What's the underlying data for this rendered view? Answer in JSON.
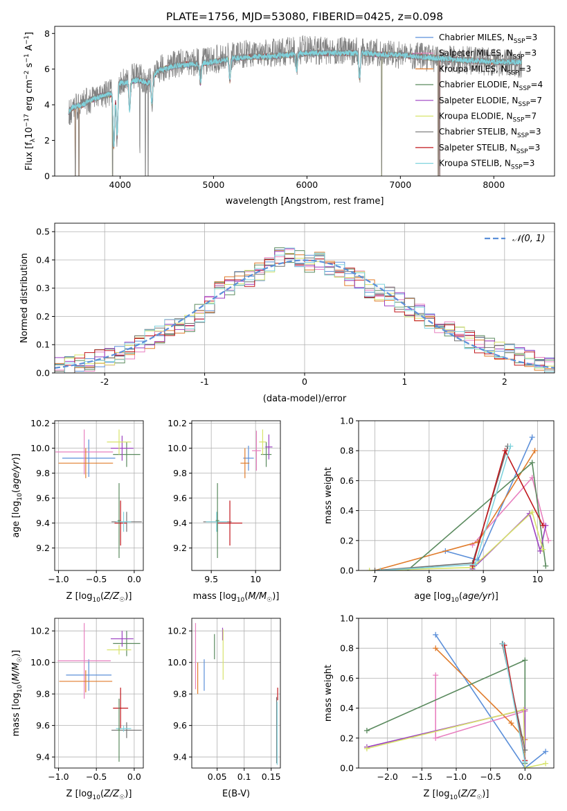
{
  "figure": {
    "title": "PLATE=1756, MJD=53080, FIBERID=0425, z=0.098"
  },
  "colors": {
    "Chabrier MILES": "#5b8fd9",
    "Salpeter MILES": "#e87fbf",
    "Kroupa MILES": "#e07b2a",
    "Chabrier ELODIE": "#5a8a5e",
    "Salpeter ELODIE": "#9b3fc0",
    "Kroupa ELODIE": "#d7e36a",
    "Chabrier STELIB": "#707070",
    "Salpeter STELIB": "#c0161b",
    "Kroupa STELIB": "#7fd3dd"
  },
  "chart_data": [
    {
      "id": "spectrum",
      "type": "line",
      "xlabel": "wavelength [Angstrom, rest frame]",
      "ylabel": "Flux [f_λ 10^-17 erg cm^-2 s^-1 A^-1]",
      "xlim": [
        3300,
        8650
      ],
      "ylim": [
        0,
        8.4
      ],
      "xticks": [
        4000,
        5000,
        6000,
        7000,
        8000
      ],
      "yticks": [
        0,
        2,
        4,
        6,
        8
      ],
      "grid": false,
      "legend": "top-right",
      "legend_entries": [
        "Chabrier MILES, N_SSP=3",
        "Salpeter MILES, N_SSP=3",
        "Kroupa MILES, N_SSP=3",
        "Chabrier ELODIE, N_SSP=4",
        "Salpeter ELODIE, N_SSP=7",
        "Kroupa ELODIE, N_SSP=7",
        "Chabrier STELIB, N_SSP=3",
        "Salpeter STELIB, N_SSP=3",
        "Kroupa STELIB, N_SSP=3"
      ],
      "data_continuum": {
        "x": [
          3450,
          3600,
          3700,
          3800,
          3900,
          4000,
          4100,
          4200,
          4300,
          4400,
          4600,
          4800,
          5000,
          5200,
          5400,
          5600,
          5800,
          6000,
          6200,
          6400,
          6600,
          6800,
          7000,
          7200,
          7400,
          7700,
          8000,
          8300
        ],
        "y": [
          3.6,
          4.1,
          4.3,
          4.5,
          4.7,
          5.3,
          5.5,
          5.6,
          5.3,
          6.0,
          6.3,
          6.4,
          6.5,
          6.8,
          6.9,
          6.9,
          7.0,
          7.1,
          7.0,
          7.0,
          7.0,
          6.9,
          6.8,
          6.7,
          6.6,
          6.5,
          6.4,
          6.3
        ]
      },
      "model_continuum": {
        "x": [
          3450,
          3500,
          3600,
          3700,
          3800,
          3900,
          4000,
          4100,
          4200,
          4300,
          4400,
          4600,
          4800,
          5000,
          5200,
          5400,
          5600,
          5800,
          6000,
          6200,
          6400,
          6600,
          6800,
          7000,
          7200,
          7400,
          7700,
          8000,
          8300
        ],
        "y": [
          3.6,
          3.9,
          4.0,
          4.3,
          4.5,
          4.6,
          5.2,
          5.3,
          5.4,
          5.2,
          5.9,
          6.2,
          6.3,
          6.4,
          6.6,
          6.7,
          6.7,
          6.8,
          6.9,
          6.9,
          6.9,
          6.9,
          6.8,
          6.8,
          6.7,
          6.6,
          6.5,
          6.4,
          6.4
        ]
      }
    },
    {
      "id": "residuals",
      "type": "line",
      "xlabel": "(data-model)/error",
      "ylabel": "Normed distribution",
      "xlim": [
        -2.5,
        2.5
      ],
      "ylim": [
        0,
        0.53
      ],
      "xticks": [
        -2,
        -1,
        0,
        1,
        2
      ],
      "yticks": [
        0.0,
        0.1,
        0.2,
        0.3,
        0.4,
        0.5
      ],
      "grid": true,
      "legend": "top-right",
      "legend_entries": [
        "𝒩(0, 1)"
      ],
      "bin_width": 0.1,
      "hist_x": [
        -2.45,
        -2.35,
        -2.25,
        -2.15,
        -2.05,
        -1.95,
        -1.85,
        -1.75,
        -1.65,
        -1.55,
        -1.45,
        -1.35,
        -1.25,
        -1.15,
        -1.05,
        -0.95,
        -0.85,
        -0.75,
        -0.65,
        -0.55,
        -0.45,
        -0.35,
        -0.25,
        -0.15,
        -0.05,
        0.05,
        0.15,
        0.25,
        0.35,
        0.45,
        0.55,
        0.65,
        0.75,
        0.85,
        0.95,
        1.05,
        1.15,
        1.25,
        1.35,
        1.45,
        1.55,
        1.65,
        1.75,
        1.85,
        1.95,
        2.05,
        2.15,
        2.25,
        2.35,
        2.45
      ],
      "hist_y": [
        0.02,
        0.025,
        0.03,
        0.04,
        0.05,
        0.06,
        0.07,
        0.08,
        0.1,
        0.12,
        0.14,
        0.16,
        0.17,
        0.18,
        0.21,
        0.24,
        0.29,
        0.31,
        0.33,
        0.34,
        0.36,
        0.38,
        0.41,
        0.42,
        0.4,
        0.39,
        0.4,
        0.37,
        0.36,
        0.34,
        0.33,
        0.3,
        0.28,
        0.27,
        0.25,
        0.23,
        0.21,
        0.19,
        0.17,
        0.15,
        0.13,
        0.12,
        0.1,
        0.09,
        0.08,
        0.07,
        0.06,
        0.05,
        0.04,
        0.03
      ],
      "normal_curve": {
        "mean": 0,
        "sigma": 1
      }
    },
    {
      "id": "z-age",
      "type": "scatter",
      "xlabel": "Z [log10(Z/Z☉)]",
      "ylabel": "age  [log10(age/yr)]",
      "xlim": [
        -1.05,
        0.12
      ],
      "ylim": [
        9.02,
        10.22
      ],
      "xticks": [
        -1.0,
        -0.5,
        0.0
      ],
      "xticklabels": [
        "−1.0",
        "−0.5",
        "0.0"
      ],
      "yticks": [
        9.2,
        9.4,
        9.6,
        9.8,
        10.0,
        10.2
      ],
      "grid": true,
      "errorbars": [
        {
          "model": "Chabrier MILES",
          "x": -0.6,
          "y": 9.92,
          "xerr": 0.35,
          "yerr": 0.15
        },
        {
          "model": "Salpeter MILES",
          "x": -0.66,
          "y": 9.97,
          "xerr": 0.38,
          "yerr": 0.18
        },
        {
          "model": "Kroupa MILES",
          "x": -0.64,
          "y": 9.88,
          "xerr": 0.36,
          "yerr": 0.12
        },
        {
          "model": "Chabrier ELODIE",
          "x": -0.1,
          "y": 9.95,
          "xerr": 0.18,
          "yerr": 0.1
        },
        {
          "model": "Salpeter ELODIE",
          "x": -0.16,
          "y": 10.0,
          "xerr": 0.15,
          "yerr": 0.1
        },
        {
          "model": "Kroupa ELODIE",
          "x": -0.2,
          "y": 10.05,
          "xerr": 0.16,
          "yerr": 0.1
        },
        {
          "model": "Chabrier STELIB",
          "x": -0.1,
          "y": 9.41,
          "xerr": 0.2,
          "yerr": 0.08
        },
        {
          "model": "Salpeter STELIB",
          "x": -0.18,
          "y": 9.4,
          "xerr": 0.08,
          "yerr": 0.18
        },
        {
          "model": "Kroupa STELIB",
          "x": -0.14,
          "y": 9.41,
          "xerr": 0.1,
          "yerr": 0.08
        },
        {
          "model": "Chabrier ELODIE",
          "x": -0.2,
          "y": 9.42,
          "xerr": 0.02,
          "yerr": 0.3
        }
      ]
    },
    {
      "id": "mass-age",
      "type": "scatter",
      "xlabel": "mass [log10(M/M☉)]",
      "xlim": [
        9.28,
        10.28
      ],
      "ylim": [
        9.02,
        10.22
      ],
      "xticks": [
        9.5,
        10.0
      ],
      "yticks": [
        9.2,
        9.4,
        9.6,
        9.8,
        10.0,
        10.2
      ],
      "grid": true,
      "errorbars": [
        {
          "model": "Chabrier MILES",
          "x": 9.92,
          "y": 9.92,
          "xerr": 0.06,
          "yerr": 0.1
        },
        {
          "model": "Salpeter MILES",
          "x": 10.01,
          "y": 9.98,
          "xerr": 0.05,
          "yerr": 0.16
        },
        {
          "model": "Kroupa MILES",
          "x": 9.88,
          "y": 9.88,
          "xerr": 0.05,
          "yerr": 0.12
        },
        {
          "model": "Chabrier ELODIE",
          "x": 10.12,
          "y": 9.95,
          "xerr": 0.06,
          "yerr": 0.1
        },
        {
          "model": "Salpeter ELODIE",
          "x": 10.15,
          "y": 10.01,
          "xerr": 0.04,
          "yerr": 0.1
        },
        {
          "model": "Kroupa ELODIE",
          "x": 10.08,
          "y": 10.05,
          "xerr": 0.04,
          "yerr": 0.1
        },
        {
          "model": "Chabrier STELIB",
          "x": 9.57,
          "y": 9.41,
          "xerr": 0.16,
          "yerr": 0.08
        },
        {
          "model": "Salpeter STELIB",
          "x": 9.71,
          "y": 9.4,
          "xerr": 0.14,
          "yerr": 0.18
        },
        {
          "model": "Kroupa STELIB",
          "x": 9.56,
          "y": 9.41,
          "xerr": 0.12,
          "yerr": 0.08
        },
        {
          "model": "Chabrier ELODIE",
          "x": 9.57,
          "y": 9.42,
          "xerr": 0.02,
          "yerr": 0.3
        }
      ]
    },
    {
      "id": "age-weight",
      "type": "line",
      "xlabel": "age  [log10(age/yr)]",
      "ylabel": "mass weight",
      "xlim": [
        6.7,
        10.3
      ],
      "ylim": [
        0,
        1.0
      ],
      "xticks": [
        7,
        8,
        9,
        10
      ],
      "yticks": [
        0.0,
        0.2,
        0.4,
        0.6,
        0.8,
        1.0
      ],
      "grid": true,
      "series": [
        {
          "model": "Chabrier MILES",
          "x": [
            8.3,
            8.9,
            9.9
          ],
          "y": [
            0.13,
            0.07,
            0.89
          ]
        },
        {
          "model": "Salpeter MILES",
          "x": [
            8.8,
            9.9,
            10.2
          ],
          "y": [
            0.17,
            0.62,
            0.2
          ]
        },
        {
          "model": "Kroupa MILES",
          "x": [
            7.0,
            8.9,
            9.95
          ],
          "y": [
            0.0,
            0.19,
            0.8
          ]
        },
        {
          "model": "Chabrier ELODIE",
          "x": [
            7.6,
            9.9,
            10.15
          ],
          "y": [
            0.0,
            0.72,
            0.03
          ]
        },
        {
          "model": "Salpeter ELODIE",
          "x": [
            8.8,
            9.85,
            10.05,
            10.15
          ],
          "y": [
            0.01,
            0.38,
            0.13,
            0.3
          ]
        },
        {
          "model": "Kroupa ELODIE",
          "x": [
            6.9,
            8.8,
            9.9,
            10.1
          ],
          "y": [
            0.0,
            0.02,
            0.39,
            0.14
          ]
        },
        {
          "model": "Chabrier STELIB",
          "x": [
            7.0,
            8.8,
            9.45
          ],
          "y": [
            0.0,
            0.05,
            0.83
          ]
        },
        {
          "model": "Salpeter STELIB",
          "x": [
            8.8,
            9.4,
            10.1
          ],
          "y": [
            0.03,
            0.8,
            0.3
          ]
        },
        {
          "model": "Kroupa STELIB",
          "x": [
            7.1,
            8.85,
            9.5
          ],
          "y": [
            0.0,
            0.04,
            0.83
          ]
        }
      ]
    },
    {
      "id": "z-mass",
      "type": "scatter",
      "xlabel": "Z [log10(Z/Z☉)]",
      "ylabel": "mass [log10(M/M☉)]",
      "xlim": [
        -1.05,
        0.12
      ],
      "ylim": [
        9.33,
        10.28
      ],
      "xticks": [
        -1.0,
        -0.5,
        0.0
      ],
      "xticklabels": [
        "−1.0",
        "−0.5",
        "0.0"
      ],
      "yticks": [
        9.4,
        9.6,
        9.8,
        10.0,
        10.2
      ],
      "grid": true,
      "errorbars": [
        {
          "model": "Chabrier MILES",
          "x": -0.6,
          "y": 9.92,
          "xerr": 0.3,
          "yerr": 0.1
        },
        {
          "model": "Salpeter MILES",
          "x": -0.66,
          "y": 10.01,
          "xerr": 0.35,
          "yerr": 0.24
        },
        {
          "model": "Kroupa MILES",
          "x": -0.64,
          "y": 9.88,
          "xerr": 0.35,
          "yerr": 0.07
        },
        {
          "model": "Chabrier ELODIE",
          "x": -0.1,
          "y": 10.12,
          "xerr": 0.18,
          "yerr": 0.08
        },
        {
          "model": "Salpeter ELODIE",
          "x": -0.16,
          "y": 10.15,
          "xerr": 0.15,
          "yerr": 0.05
        },
        {
          "model": "Kroupa ELODIE",
          "x": -0.2,
          "y": 10.08,
          "xerr": 0.16,
          "yerr": 0.03
        },
        {
          "model": "Chabrier STELIB",
          "x": -0.1,
          "y": 9.57,
          "xerr": 0.2,
          "yerr": 0.05
        },
        {
          "model": "Salpeter STELIB",
          "x": -0.18,
          "y": 9.71,
          "xerr": 0.1,
          "yerr": 0.13
        },
        {
          "model": "Kroupa STELIB",
          "x": -0.14,
          "y": 9.58,
          "xerr": 0.1,
          "yerr": 0.02
        },
        {
          "model": "Chabrier ELODIE",
          "x": -0.2,
          "y": 9.57,
          "xerr": 0.02,
          "yerr": 0.2
        }
      ]
    },
    {
      "id": "ebv-mass",
      "type": "scatter",
      "xlabel": "E(B-V)",
      "xlim": [
        0.003,
        0.167
      ],
      "ylim": [
        9.33,
        10.28
      ],
      "xticks": [
        0.05,
        0.1,
        0.15
      ],
      "yticks": [
        9.4,
        9.6,
        9.8,
        10.0,
        10.2
      ],
      "grid": true,
      "errorbars": [
        {
          "model": "Chabrier MILES",
          "x": 0.026,
          "y": 9.92,
          "xerr": 0.0,
          "yerr": 0.1
        },
        {
          "model": "Salpeter MILES",
          "x": 0.01,
          "y": 10.04,
          "xerr": 0.0,
          "yerr": 0.21
        },
        {
          "model": "Kroupa MILES",
          "x": 0.014,
          "y": 9.9,
          "xerr": 0.0,
          "yerr": 0.1
        },
        {
          "model": "Chabrier ELODIE",
          "x": 0.045,
          "y": 10.1,
          "xerr": 0.0,
          "yerr": 0.08
        },
        {
          "model": "Salpeter ELODIE",
          "x": 0.06,
          "y": 10.18,
          "xerr": 0.0,
          "yerr": 0.04
        },
        {
          "model": "Kroupa ELODIE",
          "x": 0.061,
          "y": 10.05,
          "xerr": 0.0,
          "yerr": 0.16
        },
        {
          "model": "Chabrier STELIB",
          "x": 0.16,
          "y": 9.57,
          "xerr": 0.0,
          "yerr": 0.21
        },
        {
          "model": "Salpeter STELIB",
          "x": 0.162,
          "y": 9.8,
          "xerr": 0.0,
          "yerr": 0.04
        },
        {
          "model": "Kroupa STELIB",
          "x": 0.161,
          "y": 9.55,
          "xerr": 0.0,
          "yerr": 0.2
        }
      ]
    },
    {
      "id": "z-weight",
      "type": "line",
      "xlabel": "Z [log10(Z/Z☉)]",
      "ylabel": "mass weight",
      "xlim": [
        -2.42,
        0.42
      ],
      "ylim": [
        0,
        1.0
      ],
      "xticks": [
        -2.0,
        -1.5,
        -1.0,
        -0.5,
        0.0
      ],
      "xticklabels": [
        "−2.0",
        "−1.5",
        "−1.0",
        "−0.5",
        "0.0"
      ],
      "yticks": [
        0.0,
        0.2,
        0.4,
        0.6,
        0.8,
        1.0
      ],
      "grid": true,
      "series": [
        {
          "model": "Chabrier MILES",
          "x": [
            -1.3,
            0.0,
            0.3
          ],
          "y": [
            0.89,
            0.0,
            0.11
          ]
        },
        {
          "model": "Salpeter MILES",
          "x": [
            -1.3,
            -1.3,
            0.0
          ],
          "y": [
            0.62,
            0.2,
            0.38
          ]
        },
        {
          "model": "Kroupa MILES",
          "x": [
            -1.3,
            -0.2,
            0.0
          ],
          "y": [
            0.8,
            0.3,
            0.19
          ]
        },
        {
          "model": "Chabrier ELODIE",
          "x": [
            -2.3,
            0.0,
            0.0
          ],
          "y": [
            0.25,
            0.72,
            0.03
          ]
        },
        {
          "model": "Salpeter ELODIE",
          "x": [
            -2.3,
            0.0,
            0.0
          ],
          "y": [
            0.14,
            0.39,
            0.0
          ]
        },
        {
          "model": "Kroupa ELODIE",
          "x": [
            -2.3,
            -0.02,
            0.0,
            0.3
          ],
          "y": [
            0.13,
            0.39,
            0.0,
            0.03
          ]
        },
        {
          "model": "Chabrier STELIB",
          "x": [
            -0.33,
            0.0
          ],
          "y": [
            0.83,
            0.12
          ]
        },
        {
          "model": "Salpeter STELIB",
          "x": [
            -0.3,
            0.0
          ],
          "y": [
            0.82,
            0.05
          ]
        },
        {
          "model": "Kroupa STELIB",
          "x": [
            -0.32,
            0.0
          ],
          "y": [
            0.83,
            0.04
          ]
        }
      ]
    }
  ]
}
